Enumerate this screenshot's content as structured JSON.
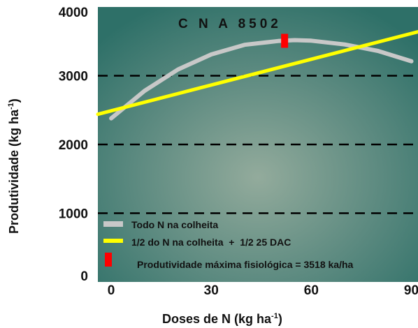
{
  "chart_data": {
    "type": "line",
    "title": "C N A 8502",
    "xlabel": "Doses de N (kg ha",
    "xlabel_sup": "-1",
    "xlabel_end": ")",
    "ylabel": "Produtividade (kg ha",
    "ylabel_sup": "-1",
    "ylabel_end": ")",
    "xlim": [
      -4,
      92
    ],
    "ylim": [
      0,
      4000
    ],
    "xticks": [
      "0",
      "30",
      "60",
      "90"
    ],
    "xtick_values": [
      0,
      30,
      60,
      90
    ],
    "yticks": [
      "0",
      "1000",
      "2000",
      "3000",
      "4000"
    ],
    "ytick_values": [
      0,
      1000,
      2000,
      3000,
      4000
    ],
    "gridlines_y": [
      1000,
      2000,
      3000
    ],
    "series": [
      {
        "name": "Todo N na colheita",
        "color": "#c8c8c8",
        "x": [
          0,
          10,
          20,
          30,
          40,
          50,
          55,
          60,
          70,
          80,
          90
        ],
        "y": [
          2380,
          2780,
          3090,
          3310,
          3450,
          3505,
          3518,
          3510,
          3455,
          3360,
          3210
        ]
      },
      {
        "name": "1/2 do N na colheita  +  1/2 25 DAC",
        "color": "#ffff00",
        "x": [
          -4,
          92
        ],
        "y": [
          2440,
          3640
        ]
      }
    ],
    "marker": {
      "name": "Produtividade máxima fisiológica = 3518 ka/ha",
      "color": "#ff0000",
      "x": 52,
      "y": 3518
    }
  }
}
